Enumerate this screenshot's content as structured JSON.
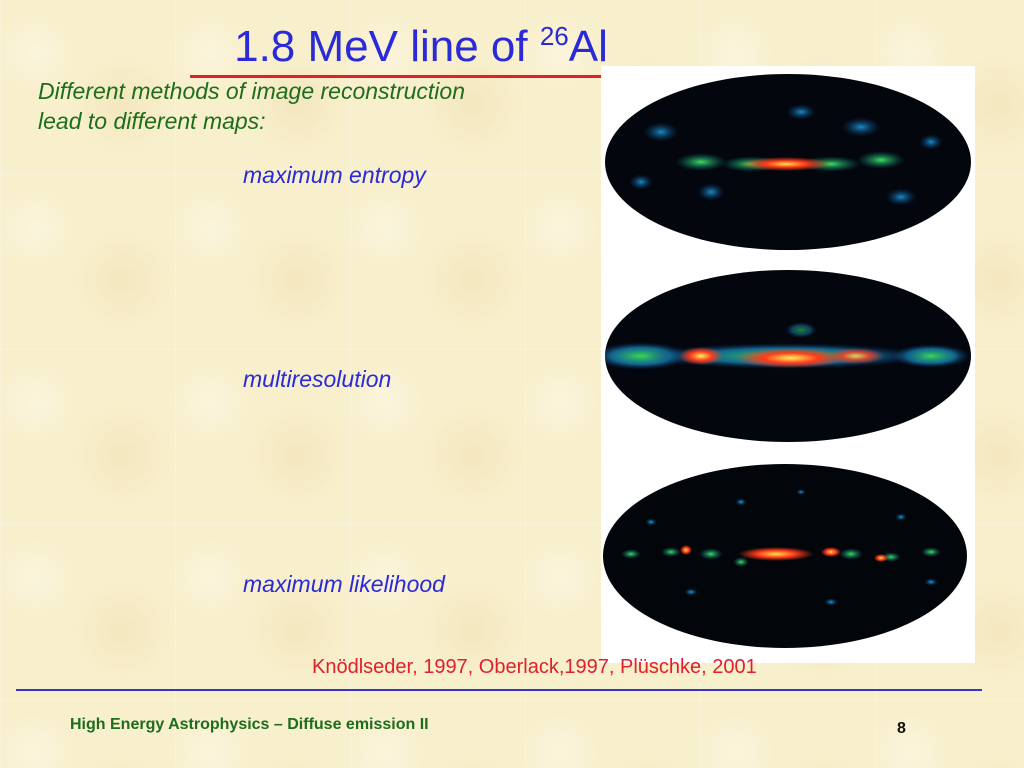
{
  "slide": {
    "title_main": "1.8 MeV line of ",
    "title_superscript": "26",
    "title_element": "Al",
    "intro_text_line1": "Different methods of image reconstruction",
    "intro_text_line2": "lead to different maps:",
    "methods": [
      {
        "label": "maximum entropy"
      },
      {
        "label": "multiresolution"
      },
      {
        "label": "maximum likelihood"
      }
    ],
    "citation": "Knödlseder, 1997, Oberlack,1997, Plüschke, 2001"
  },
  "footer": {
    "course_title": "High Energy Astrophysics – Diffuse emission II",
    "page_number": "8"
  },
  "colors": {
    "title": "#2a2ad8",
    "intro": "#1d6d1d",
    "citation": "#e0202a",
    "background": "#f8efcc"
  }
}
